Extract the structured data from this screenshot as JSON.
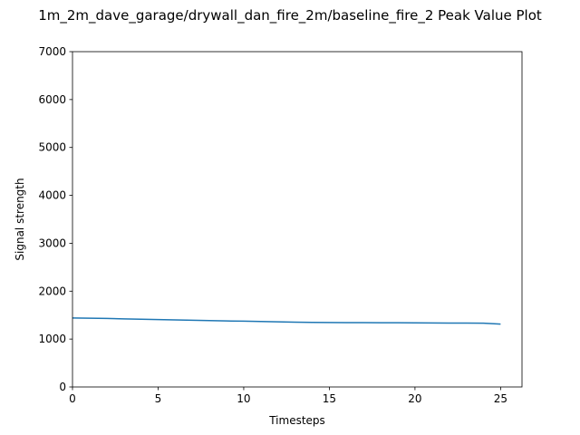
{
  "chart_data": {
    "type": "line",
    "title": "1m_2m_dave_garage/drywall_dan_fire_2m/baseline_fire_2 Peak Value Plot",
    "xlabel": "Timesteps",
    "ylabel": "Signal strength",
    "xlim": [
      0,
      26.25
    ],
    "ylim": [
      0,
      7000
    ],
    "xticks": [
      0,
      5,
      10,
      15,
      20,
      25
    ],
    "yticks": [
      0,
      1000,
      2000,
      3000,
      4000,
      5000,
      6000,
      7000
    ],
    "grid": false,
    "series": [
      {
        "color": "#1f77b4",
        "x": [
          0,
          1,
          2,
          3,
          4,
          5,
          6,
          7,
          8,
          9,
          10,
          11,
          12,
          13,
          14,
          15,
          16,
          17,
          18,
          19,
          20,
          21,
          22,
          23,
          24,
          25
        ],
        "y": [
          1440,
          1435,
          1430,
          1422,
          1415,
          1408,
          1400,
          1392,
          1385,
          1378,
          1375,
          1368,
          1360,
          1352,
          1348,
          1345,
          1344,
          1343,
          1342,
          1340,
          1338,
          1336,
          1334,
          1333,
          1332,
          1312
        ]
      }
    ]
  }
}
